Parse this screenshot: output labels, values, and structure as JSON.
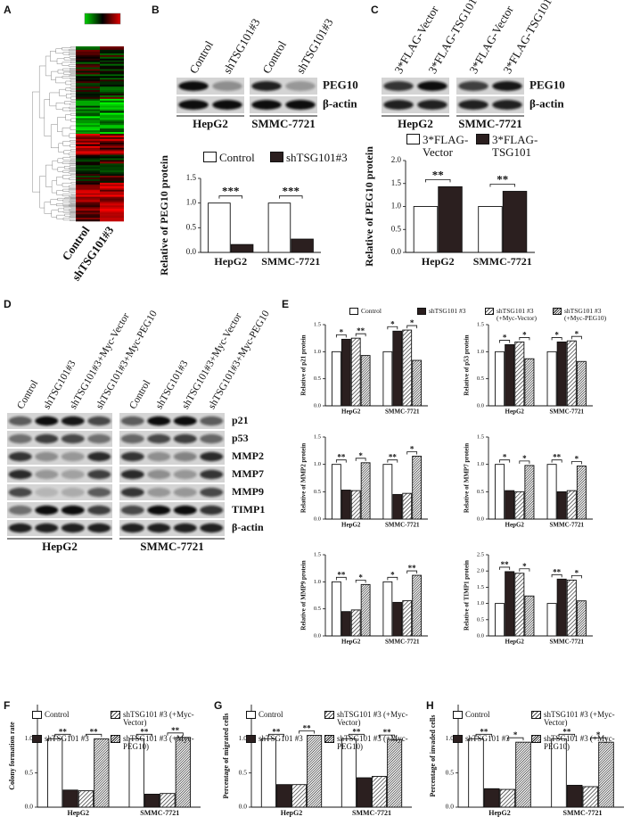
{
  "panel_labels": [
    "A",
    "B",
    "C",
    "D",
    "E",
    "F",
    "G",
    "H"
  ],
  "heatmap": {
    "lanes": [
      "Control",
      "shTSG101#3"
    ]
  },
  "blots": [
    {
      "lanes": [
        "Control",
        "shTSG101#3",
        "Control",
        "shTSG101#3"
      ],
      "proteins": [
        "PEG10",
        "β-actin"
      ],
      "cell_lines": [
        "HepG2",
        "SMMC-7721"
      ]
    },
    {
      "lanes": [
        "3*FLAG-Vector",
        "3*FLAG-TSG101",
        "3*FLAG-Vector",
        "3*FLAG-TSG101"
      ],
      "proteins": [
        "PEG10",
        "β-actin"
      ],
      "cell_lines": [
        "HepG2",
        "SMMC-7721"
      ]
    },
    {
      "lanes": [
        "Control",
        "shTSG101#3",
        "shTSG101#3+Myc-Vector",
        "shTSG101#3+Myc-PEG10",
        "Control",
        "shTSG101#3",
        "shTSG101#3+Myc-Vector",
        "shTSG101#3+Myc-PEG10"
      ],
      "proteins": [
        "p21",
        "p53",
        "MMP2",
        "MMP7",
        "MMP9",
        "TIMP1",
        "β-actin"
      ],
      "cell_lines": [
        "HepG2",
        "SMMC-7721"
      ]
    }
  ],
  "chart_data": [
    {
      "type": "bar",
      "ylabel": "Relative of PEG10 protein",
      "categories": [
        "HepG2",
        "SMMC-7721"
      ],
      "series": [
        {
          "name": "Control",
          "color": "#ffffff",
          "values": [
            1,
            1
          ]
        },
        {
          "name": "shTSG101#3",
          "color": "#2b1f1f",
          "values": [
            0.16,
            0.27
          ]
        }
      ],
      "ylim": [
        0,
        1.5
      ],
      "yticks": [
        {
          "value": 0,
          "label": "0.0"
        },
        {
          "value": 0.5,
          "label": "0.5"
        },
        {
          "value": 1,
          "label": "1.0"
        },
        {
          "value": 1.5,
          "label": "1.5"
        }
      ],
      "significance": [
        "***",
        "***"
      ]
    },
    {
      "type": "bar",
      "ylabel": "Relative of PEG10 protein",
      "categories": [
        "HepG2",
        "SMMC-7721"
      ],
      "series": [
        {
          "name": "3*FLAG-Vector",
          "color": "#ffffff",
          "values": [
            1,
            1
          ]
        },
        {
          "name": "3*FLAG-TSG101",
          "color": "#2b1f1f",
          "values": [
            1.43,
            1.33
          ]
        }
      ],
      "ylim": [
        0,
        2
      ],
      "yticks": [
        {
          "value": 0,
          "label": "0.0"
        },
        {
          "value": 0.5,
          "label": "0.5"
        },
        {
          "value": 1,
          "label": "1.0"
        },
        {
          "value": 1.5,
          "label": "1.5"
        },
        {
          "value": 2,
          "label": "2.0"
        }
      ],
      "significance": [
        "**",
        "**"
      ]
    },
    {
      "type": "bar",
      "ylabel": "Relative of p21 protein",
      "categories": [
        "HepG2",
        "SMMC-7721"
      ],
      "series": [
        {
          "name": "Control",
          "color": "#ffffff",
          "values": [
            1,
            1
          ]
        },
        {
          "name": "shTSG101 #3",
          "color": "#2b1f1f",
          "values": [
            1.23,
            1.38
          ]
        },
        {
          "name": "shTSG101 #3 (+Myc-Vector)",
          "color": "#ffffff",
          "pattern": "hatch",
          "values": [
            1.25,
            1.4
          ]
        },
        {
          "name": "shTSG101 #3 (+Myc-PEG10)",
          "color": "#ffffff",
          "pattern": "dense-hatch",
          "values": [
            0.93,
            0.84
          ]
        }
      ],
      "ylim": [
        0,
        1.5
      ],
      "yticks": [
        {
          "value": 0,
          "label": "0.0"
        },
        {
          "value": 0.5,
          "label": "0.5"
        },
        {
          "value": 1,
          "label": "1.0"
        },
        {
          "value": 1.5,
          "label": "1.5"
        }
      ],
      "significance": [
        [
          "*",
          "**"
        ],
        [
          "*",
          "*"
        ]
      ]
    },
    {
      "type": "bar",
      "ylabel": "Relative of p53 protein",
      "categories": [
        "HepG2",
        "SMMC-7721"
      ],
      "series": [
        {
          "color": "#ffffff",
          "values": [
            1,
            1
          ]
        },
        {
          "color": "#2b1f1f",
          "values": [
            1.13,
            1.18
          ]
        },
        {
          "color": "#ffffff",
          "pattern": "hatch",
          "values": [
            1.18,
            1.2
          ]
        },
        {
          "color": "#ffffff",
          "pattern": "dense-hatch",
          "values": [
            0.87,
            0.82
          ]
        }
      ],
      "ylim": [
        0,
        1.5
      ],
      "yticks": [
        {
          "value": 0,
          "label": "0.0"
        },
        {
          "value": 0.5,
          "label": "0.5"
        },
        {
          "value": 1,
          "label": "1.0"
        },
        {
          "value": 1.5,
          "label": "1.5"
        }
      ],
      "significance": [
        [
          "*",
          "*"
        ],
        [
          "*",
          "*"
        ]
      ]
    },
    {
      "type": "bar",
      "ylabel": "Relative of MMP2 protein",
      "categories": [
        "HepG2",
        "SMMC-7721"
      ],
      "series": [
        {
          "color": "#ffffff",
          "values": [
            1,
            1
          ]
        },
        {
          "color": "#2b1f1f",
          "values": [
            0.53,
            0.45
          ]
        },
        {
          "color": "#ffffff",
          "pattern": "hatch",
          "values": [
            0.52,
            0.47
          ]
        },
        {
          "color": "#ffffff",
          "pattern": "dense-hatch",
          "values": [
            1.03,
            1.15
          ]
        }
      ],
      "ylim": [
        0,
        1.5
      ],
      "yticks": [
        {
          "value": 0,
          "label": "0.0"
        },
        {
          "value": 0.5,
          "label": "0.5"
        },
        {
          "value": 1,
          "label": "1.0"
        },
        {
          "value": 1.5,
          "label": "1.5"
        }
      ],
      "significance": [
        [
          "**",
          "*"
        ],
        [
          "**",
          "*"
        ]
      ]
    },
    {
      "type": "bar",
      "ylabel": "Relative of MMP7 protein",
      "categories": [
        "HepG2",
        "SMMC-7721"
      ],
      "series": [
        {
          "color": "#ffffff",
          "values": [
            1,
            1
          ]
        },
        {
          "color": "#2b1f1f",
          "values": [
            0.52,
            0.5
          ]
        },
        {
          "color": "#ffffff",
          "pattern": "hatch",
          "values": [
            0.5,
            0.52
          ]
        },
        {
          "color": "#ffffff",
          "pattern": "dense-hatch",
          "values": [
            0.98,
            0.97
          ]
        }
      ],
      "ylim": [
        0,
        1.5
      ],
      "yticks": [
        {
          "value": 0,
          "label": "0.0"
        },
        {
          "value": 0.5,
          "label": "0.5"
        },
        {
          "value": 1,
          "label": "1.0"
        },
        {
          "value": 1.5,
          "label": "1.5"
        }
      ],
      "significance": [
        [
          "*",
          "*"
        ],
        [
          "**",
          "*"
        ]
      ]
    },
    {
      "type": "bar",
      "ylabel": "Relative of MMP9 protein",
      "categories": [
        "HepG2",
        "SMMC-7721"
      ],
      "series": [
        {
          "color": "#ffffff",
          "values": [
            1,
            1
          ]
        },
        {
          "color": "#2b1f1f",
          "values": [
            0.45,
            0.62
          ]
        },
        {
          "color": "#ffffff",
          "pattern": "hatch",
          "values": [
            0.48,
            0.65
          ]
        },
        {
          "color": "#ffffff",
          "pattern": "dense-hatch",
          "values": [
            0.95,
            1.12
          ]
        }
      ],
      "ylim": [
        0,
        1.5
      ],
      "yticks": [
        {
          "value": 0,
          "label": "0.0"
        },
        {
          "value": 0.5,
          "label": "0.5"
        },
        {
          "value": 1,
          "label": "1.0"
        },
        {
          "value": 1.5,
          "label": "1.5"
        }
      ],
      "significance": [
        [
          "**",
          "*"
        ],
        [
          "*",
          "**"
        ]
      ]
    },
    {
      "type": "bar",
      "ylabel": "Relative of TIMP1 protein",
      "categories": [
        "HepG2",
        "SMMC-7721"
      ],
      "series": [
        {
          "color": "#ffffff",
          "values": [
            1,
            1
          ]
        },
        {
          "color": "#2b1f1f",
          "values": [
            1.98,
            1.75
          ]
        },
        {
          "color": "#ffffff",
          "pattern": "hatch",
          "values": [
            1.93,
            1.72
          ]
        },
        {
          "color": "#ffffff",
          "pattern": "dense-hatch",
          "values": [
            1.23,
            1.08
          ]
        }
      ],
      "ylim": [
        0,
        2.5
      ],
      "yticks": [
        {
          "value": 0,
          "label": "0.0"
        },
        {
          "value": 0.5,
          "label": "0.5"
        },
        {
          "value": 1,
          "label": "1.0"
        },
        {
          "value": 1.5,
          "label": "1.5"
        },
        {
          "value": 2,
          "label": "2.0"
        },
        {
          "value": 2.5,
          "label": "2.5"
        }
      ],
      "significance": [
        [
          "**",
          "*"
        ],
        [
          "**",
          "*"
        ]
      ]
    },
    {
      "type": "bar",
      "ylabel": "Colony formation rate",
      "categories": [
        "HepG2",
        "SMMC-7721"
      ],
      "series": [
        {
          "name": "Control",
          "color": "#ffffff",
          "values": [
            1,
            1
          ]
        },
        {
          "name": "shTSG101 #3",
          "color": "#2b1f1f",
          "values": [
            0.25,
            0.19
          ]
        },
        {
          "name": "shTSG101 #3 (+Myc-Vector)",
          "color": "#ffffff",
          "pattern": "hatch",
          "values": [
            0.24,
            0.2
          ]
        },
        {
          "name": "shTSG101 #3 (+Myc-PEG10)",
          "color": "#ffffff",
          "pattern": "dense-hatch",
          "values": [
            1.0,
            1.02
          ]
        }
      ],
      "ylim": [
        0,
        1.5
      ],
      "yticks": [
        {
          "value": 0,
          "label": "0.0"
        },
        {
          "value": 0.5,
          "label": "0.5"
        },
        {
          "value": 1,
          "label": "1.0"
        }
      ],
      "significance": [
        [
          "**",
          "**"
        ],
        [
          "**",
          "**"
        ]
      ]
    },
    {
      "type": "bar",
      "ylabel": "Percentage of migrated cells",
      "categories": [
        "HepG2",
        "SMMC-7721"
      ],
      "series": [
        {
          "name": "Control",
          "color": "#ffffff",
          "values": [
            1,
            1
          ]
        },
        {
          "name": "shTSG101 #3",
          "color": "#2b1f1f",
          "values": [
            0.33,
            0.43
          ]
        },
        {
          "name": "shTSG101 #3 (+Myc-Vector)",
          "color": "#ffffff",
          "pattern": "hatch",
          "values": [
            0.33,
            0.45
          ]
        },
        {
          "name": "shTSG101 #3 (+Myc-PEG10)",
          "color": "#ffffff",
          "pattern": "dense-hatch",
          "values": [
            1.05,
            0.99
          ]
        }
      ],
      "ylim": [
        0,
        1.5
      ],
      "yticks": [
        {
          "value": 0,
          "label": "0.0"
        },
        {
          "value": 0.5,
          "label": "0.5"
        },
        {
          "value": 1,
          "label": "1.0"
        }
      ],
      "significance": [
        [
          "**",
          "**"
        ],
        [
          "**",
          "**"
        ]
      ]
    },
    {
      "type": "bar",
      "ylabel": "Percentage of invaded cells",
      "categories": [
        "HepG2",
        "SMMC-7721"
      ],
      "series": [
        {
          "name": "Control",
          "color": "#ffffff",
          "values": [
            1,
            1
          ]
        },
        {
          "name": "shTSG101 #3",
          "color": "#2b1f1f",
          "values": [
            0.27,
            0.32
          ]
        },
        {
          "name": "shTSG101 #3 (+Myc-Vector)",
          "color": "#ffffff",
          "pattern": "hatch",
          "values": [
            0.26,
            0.3
          ]
        },
        {
          "name": "shTSG101 #3 (+Myc-PEG10)",
          "color": "#ffffff",
          "pattern": "dense-hatch",
          "values": [
            0.95,
            0.95
          ]
        }
      ],
      "ylim": [
        0,
        1.5
      ],
      "yticks": [
        {
          "value": 0,
          "label": "0.0"
        },
        {
          "value": 0.5,
          "label": "0.5"
        },
        {
          "value": 1,
          "label": "1.0"
        }
      ],
      "significance": [
        [
          "**",
          "*"
        ],
        [
          "**",
          "*"
        ]
      ]
    }
  ]
}
